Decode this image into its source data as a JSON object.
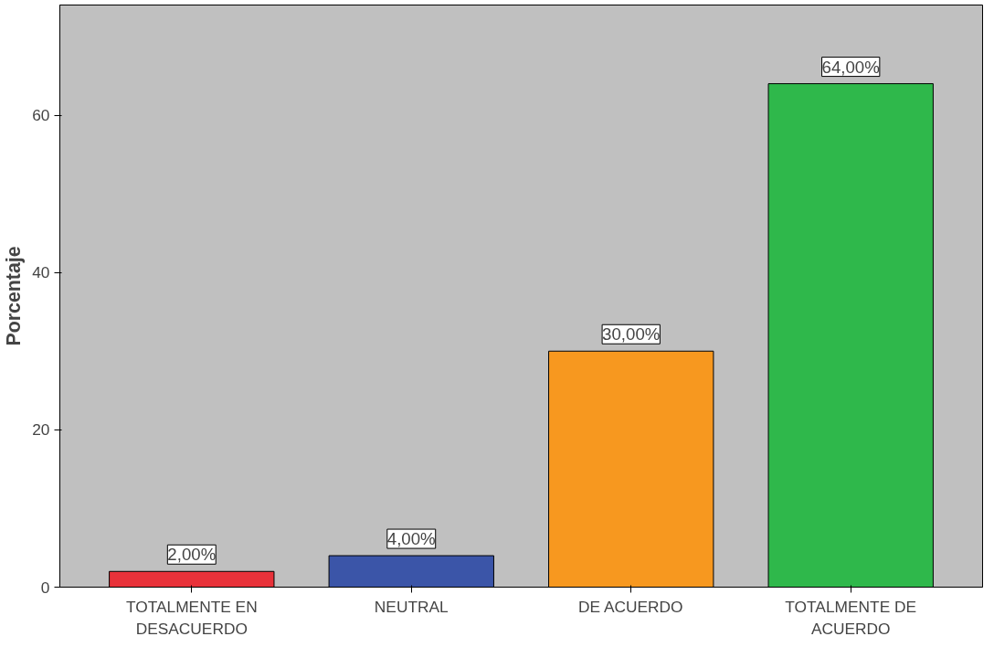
{
  "chart_data": {
    "type": "bar",
    "ylabel": "Porcentaje",
    "categories": [
      "TOTALMENTE EN DESACUERDO",
      "NEUTRAL",
      "DE ACUERDO",
      "TOTALMENTE DE ACUERDO"
    ],
    "values": [
      2,
      4,
      30,
      64
    ],
    "colors": [
      "#e8323a",
      "#3b55a8",
      "#f7981f",
      "#2fb84b"
    ],
    "value_labels": [
      "2,00%",
      "4,00%",
      "30,00%",
      "64,00%"
    ],
    "ylim": [
      0,
      74
    ],
    "yticks": [
      0,
      20,
      40,
      60
    ],
    "grid": false
  }
}
